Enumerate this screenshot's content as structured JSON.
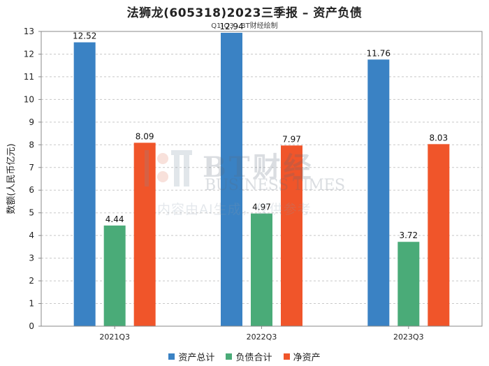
{
  "chart_data": {
    "type": "bar",
    "title": "法狮龙(605318)2023三季报 – 资产负债",
    "subtitle": "Q1-Q3 - BT财经绘制",
    "ylabel": "数额(人民币亿元)",
    "xlabel": "",
    "categories": [
      "2021Q3",
      "2022Q3",
      "2023Q3"
    ],
    "ylim": [
      0,
      13
    ],
    "yticks": [
      0,
      1,
      2,
      3,
      4,
      5,
      6,
      7,
      8,
      9,
      10,
      11,
      12,
      13
    ],
    "grid": true,
    "legend_position": "bottom",
    "series": [
      {
        "name": "资产总计",
        "color": "#3a82c4",
        "values": [
          12.52,
          12.94,
          11.76
        ]
      },
      {
        "name": "负债合计",
        "color": "#4aab78",
        "values": [
          4.44,
          4.97,
          3.72
        ]
      },
      {
        "name": "净资产",
        "color": "#f0552a",
        "values": [
          8.09,
          7.97,
          8.03
        ]
      }
    ]
  },
  "watermark": {
    "brand": "BT财经",
    "brand_en": "BUSINESS TIMES",
    "note": "内容由AI生成，仅供参考"
  }
}
